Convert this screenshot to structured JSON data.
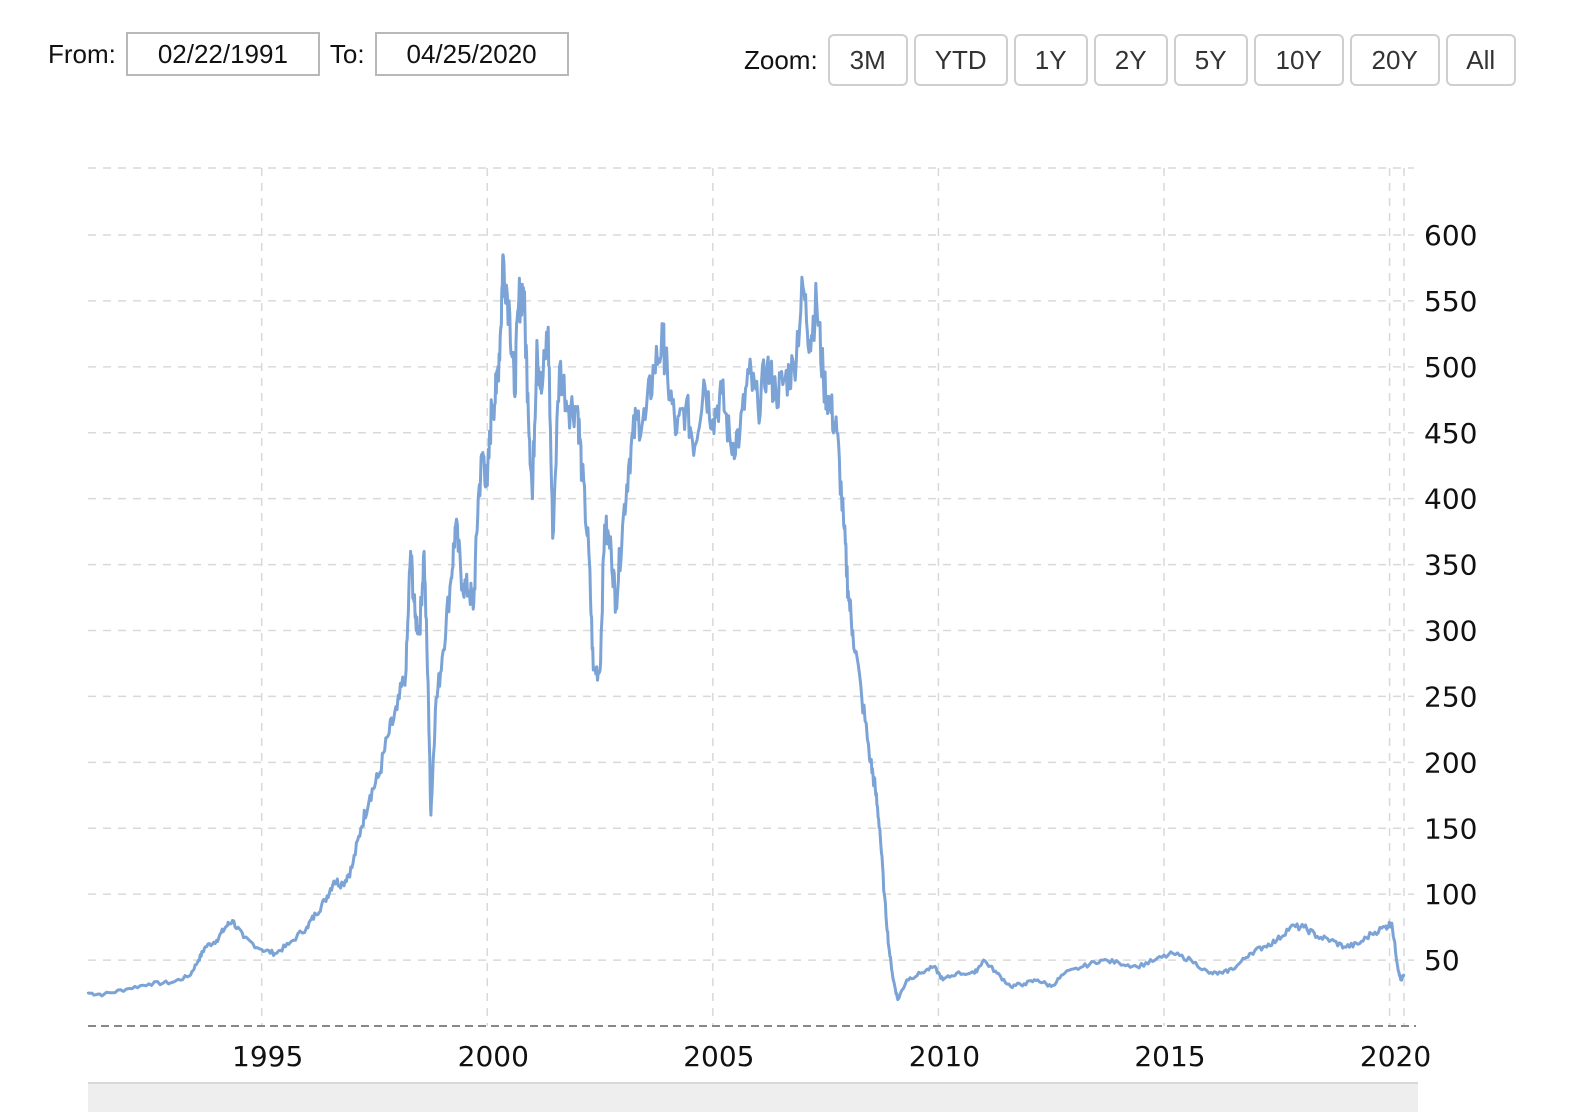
{
  "range_selector": {
    "from_label": "From:",
    "from_value": "02/22/1991",
    "to_label": "To:",
    "to_value": "04/25/2020"
  },
  "zoom": {
    "label": "Zoom:",
    "buttons": [
      "3M",
      "YTD",
      "1Y",
      "2Y",
      "5Y",
      "10Y",
      "20Y",
      "All"
    ]
  },
  "colors": {
    "line": "#7ba3d6",
    "grid": "#d9d9d9",
    "axis": "#888888"
  },
  "chart_data": {
    "type": "line",
    "title": "",
    "xlabel": "",
    "ylabel": "",
    "x_tick_labels": [
      "1995",
      "2000",
      "2005",
      "2010",
      "2015",
      "2020"
    ],
    "y_tick_labels": [
      "50",
      "100",
      "150",
      "200",
      "250",
      "300",
      "350",
      "400",
      "450",
      "500",
      "550",
      "600"
    ],
    "ylim": [
      0,
      650
    ],
    "xlim": [
      1991.15,
      2020.32
    ],
    "grid": true,
    "legend": "none",
    "series": [
      {
        "values": [
          [
            1991.15,
            25
          ],
          [
            1991.5,
            24
          ],
          [
            1992.0,
            28
          ],
          [
            1992.5,
            32
          ],
          [
            1993.0,
            33
          ],
          [
            1993.4,
            38
          ],
          [
            1993.6,
            50
          ],
          [
            1993.75,
            60
          ],
          [
            1994.0,
            65
          ],
          [
            1994.2,
            75
          ],
          [
            1994.35,
            80
          ],
          [
            1994.6,
            67
          ],
          [
            1995.0,
            58
          ],
          [
            1995.3,
            55
          ],
          [
            1995.6,
            62
          ],
          [
            1996.0,
            75
          ],
          [
            1996.2,
            85
          ],
          [
            1996.4,
            95
          ],
          [
            1996.6,
            110
          ],
          [
            1996.8,
            108
          ],
          [
            1997.0,
            120
          ],
          [
            1997.2,
            150
          ],
          [
            1997.4,
            175
          ],
          [
            1997.6,
            190
          ],
          [
            1997.8,
            220
          ],
          [
            1998.0,
            240
          ],
          [
            1998.2,
            270
          ],
          [
            1998.3,
            360
          ],
          [
            1998.4,
            310
          ],
          [
            1998.5,
            300
          ],
          [
            1998.6,
            360
          ],
          [
            1998.7,
            240
          ],
          [
            1998.75,
            160
          ],
          [
            1998.85,
            240
          ],
          [
            1999.0,
            280
          ],
          [
            1999.2,
            340
          ],
          [
            1999.3,
            380
          ],
          [
            1999.45,
            335
          ],
          [
            1999.6,
            330
          ],
          [
            1999.7,
            320
          ],
          [
            1999.8,
            400
          ],
          [
            1999.9,
            435
          ],
          [
            2000.0,
            410
          ],
          [
            2000.1,
            470
          ],
          [
            2000.2,
            480
          ],
          [
            2000.3,
            530
          ],
          [
            2000.35,
            585
          ],
          [
            2000.5,
            540
          ],
          [
            2000.6,
            480
          ],
          [
            2000.7,
            550
          ],
          [
            2000.8,
            560
          ],
          [
            2000.9,
            480
          ],
          [
            2001.0,
            400
          ],
          [
            2001.1,
            520
          ],
          [
            2001.2,
            480
          ],
          [
            2001.35,
            530
          ],
          [
            2001.45,
            370
          ],
          [
            2001.6,
            500
          ],
          [
            2001.8,
            470
          ],
          [
            2002.0,
            470
          ],
          [
            2002.1,
            420
          ],
          [
            2002.25,
            360
          ],
          [
            2002.35,
            270
          ],
          [
            2002.5,
            270
          ],
          [
            2002.6,
            380
          ],
          [
            2002.75,
            360
          ],
          [
            2002.85,
            320
          ],
          [
            2003.0,
            380
          ],
          [
            2003.15,
            430
          ],
          [
            2003.3,
            460
          ],
          [
            2003.5,
            460
          ],
          [
            2003.7,
            500
          ],
          [
            2003.9,
            520
          ],
          [
            2004.0,
            490
          ],
          [
            2004.2,
            450
          ],
          [
            2004.4,
            470
          ],
          [
            2004.6,
            440
          ],
          [
            2004.8,
            490
          ],
          [
            2005.0,
            460
          ],
          [
            2005.2,
            480
          ],
          [
            2005.4,
            440
          ],
          [
            2005.6,
            450
          ],
          [
            2005.8,
            495
          ],
          [
            2006.0,
            470
          ],
          [
            2006.2,
            500
          ],
          [
            2006.4,
            480
          ],
          [
            2006.6,
            490
          ],
          [
            2006.8,
            500
          ],
          [
            2007.0,
            560
          ],
          [
            2007.15,
            520
          ],
          [
            2007.3,
            550
          ],
          [
            2007.45,
            490
          ],
          [
            2007.6,
            470
          ],
          [
            2007.75,
            450
          ],
          [
            2007.9,
            380
          ],
          [
            2008.0,
            330
          ],
          [
            2008.1,
            300
          ],
          [
            2008.3,
            250
          ],
          [
            2008.5,
            200
          ],
          [
            2008.6,
            180
          ],
          [
            2008.7,
            150
          ],
          [
            2008.8,
            100
          ],
          [
            2008.9,
            60
          ],
          [
            2009.0,
            35
          ],
          [
            2009.1,
            20
          ],
          [
            2009.3,
            35
          ],
          [
            2009.6,
            40
          ],
          [
            2009.9,
            45
          ],
          [
            2010.1,
            35
          ],
          [
            2010.4,
            40
          ],
          [
            2010.8,
            40
          ],
          [
            2011.0,
            50
          ],
          [
            2011.3,
            40
          ],
          [
            2011.6,
            30
          ],
          [
            2011.9,
            32
          ],
          [
            2012.2,
            35
          ],
          [
            2012.5,
            30
          ],
          [
            2012.8,
            40
          ],
          [
            2013.2,
            45
          ],
          [
            2013.6,
            50
          ],
          [
            2014.0,
            48
          ],
          [
            2014.4,
            45
          ],
          [
            2014.8,
            50
          ],
          [
            2015.2,
            55
          ],
          [
            2015.6,
            50
          ],
          [
            2016.0,
            40
          ],
          [
            2016.3,
            40
          ],
          [
            2016.6,
            45
          ],
          [
            2016.9,
            55
          ],
          [
            2017.2,
            60
          ],
          [
            2017.5,
            65
          ],
          [
            2017.8,
            75
          ],
          [
            2018.1,
            75
          ],
          [
            2018.4,
            68
          ],
          [
            2018.7,
            65
          ],
          [
            2019.0,
            60
          ],
          [
            2019.3,
            62
          ],
          [
            2019.6,
            70
          ],
          [
            2019.9,
            75
          ],
          [
            2020.05,
            78
          ],
          [
            2020.18,
            45
          ],
          [
            2020.25,
            35
          ],
          [
            2020.32,
            38
          ]
        ]
      }
    ]
  }
}
